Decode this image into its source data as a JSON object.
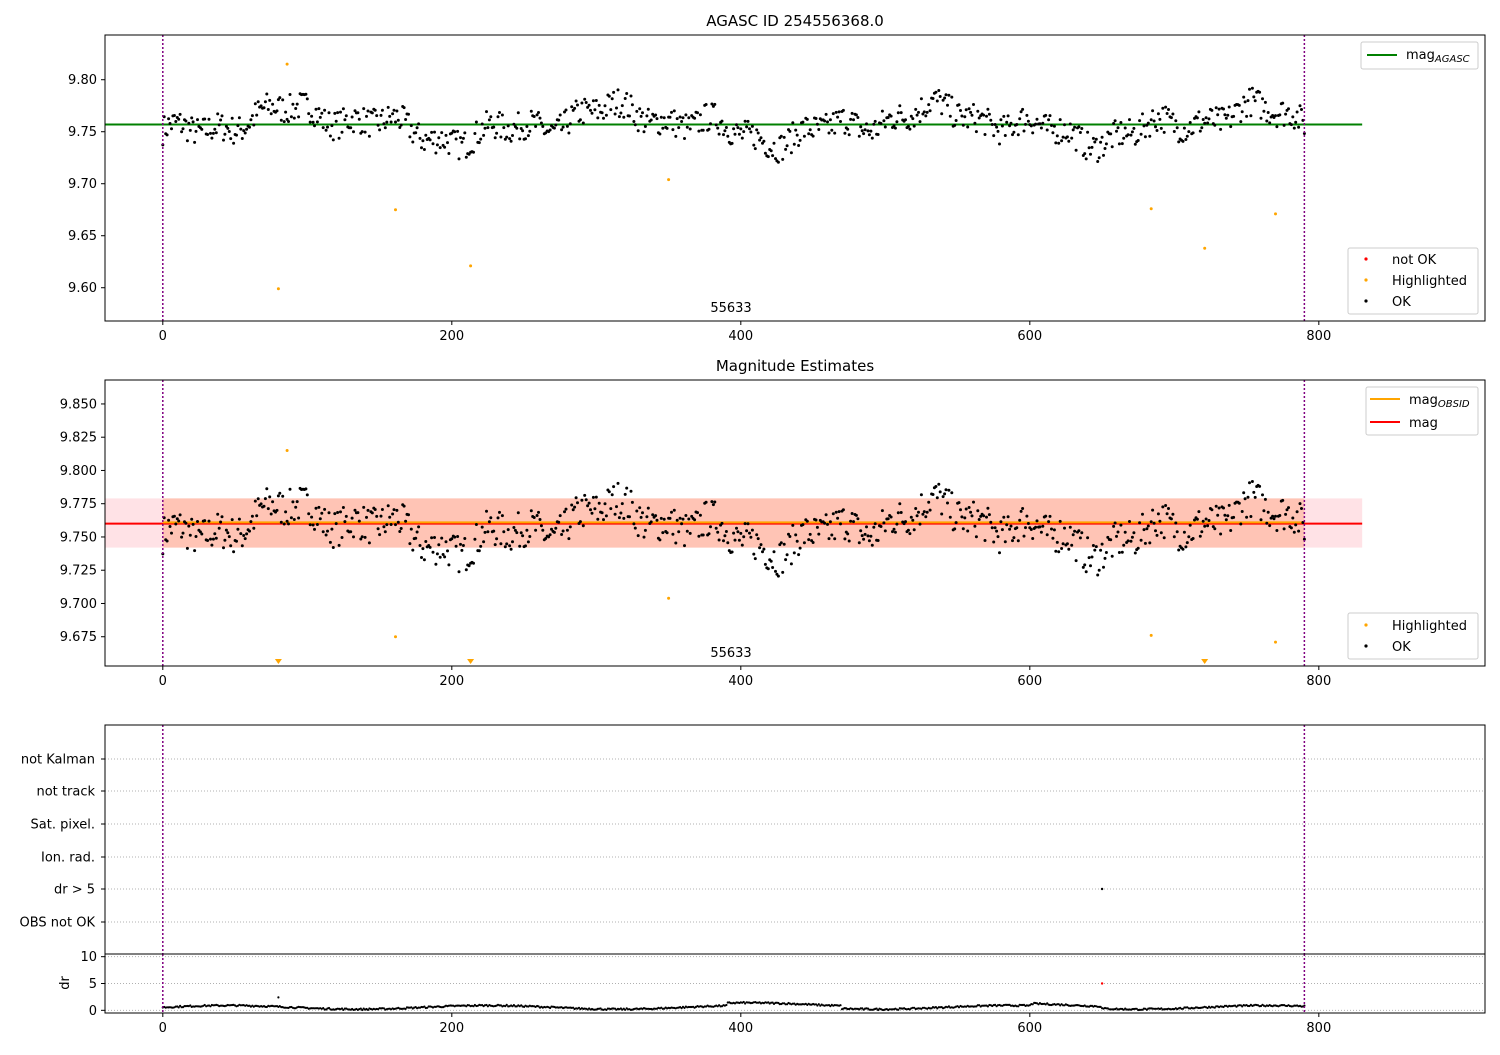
{
  "chart_data": [
    {
      "type": "scatter",
      "title": "AGASC ID 254556368.0",
      "xlim": [
        -40,
        915
      ],
      "ylim": [
        9.568,
        9.843
      ],
      "xticks": [
        0,
        200,
        400,
        600,
        800
      ],
      "xtick_labels": [
        "0",
        "200",
        "400",
        "600",
        "800"
      ],
      "yticks": [
        9.6,
        9.65,
        9.7,
        9.75,
        9.8
      ],
      "ytick_labels": [
        "9.60",
        "9.65",
        "9.70",
        "9.75",
        "9.80"
      ],
      "annotation": "55633",
      "vlines": [
        0,
        790
      ],
      "hlines": [
        {
          "name": "mag_AGASC",
          "y": 9.757,
          "color": "#008000",
          "x": [
            -40,
            830
          ]
        }
      ],
      "series": [
        {
          "name": "not OK",
          "color": "#ff0000",
          "points": []
        },
        {
          "name": "Highlighted",
          "color": "#ffa500",
          "points": [
            [
              80,
              9.599
            ],
            [
              86,
              9.815
            ],
            [
              161,
              9.675
            ],
            [
              213,
              9.621
            ],
            [
              350,
              9.704
            ],
            [
              684,
              9.676
            ],
            [
              721,
              9.638
            ],
            [
              770,
              9.671
            ]
          ]
        },
        {
          "name": "OK",
          "color": "#000000",
          "note": "about 790 points from x=0 to x=790, slow wander between 9.72 and 9.81; series is generated in script"
        }
      ],
      "legends": [
        {
          "position": "upper-right",
          "entries": [
            {
              "label": "mag",
              "sub": "AGASC",
              "kind": "line",
              "color": "#008000"
            }
          ]
        },
        {
          "position": "lower-right",
          "entries": [
            {
              "label": "not OK",
              "kind": "dot",
              "color": "#ff0000"
            },
            {
              "label": "Highlighted",
              "kind": "dot",
              "color": "#ffa500"
            },
            {
              "label": "OK",
              "kind": "dot",
              "color": "#000000"
            }
          ]
        }
      ]
    },
    {
      "type": "scatter",
      "title": "Magnitude Estimates",
      "xlim": [
        -40,
        915
      ],
      "ylim": [
        9.653,
        9.868
      ],
      "xticks": [
        0,
        200,
        400,
        600,
        800
      ],
      "xtick_labels": [
        "0",
        "200",
        "400",
        "600",
        "800"
      ],
      "yticks": [
        9.675,
        9.7,
        9.725,
        9.75,
        9.775,
        9.8,
        9.825,
        9.85
      ],
      "ytick_labels": [
        "9.675",
        "9.700",
        "9.725",
        "9.750",
        "9.775",
        "9.800",
        "9.825",
        "9.850"
      ],
      "annotation": "55633",
      "vlines": [
        0,
        790
      ],
      "bands": [
        {
          "name": "mag band",
          "x": [
            -40,
            830
          ],
          "y": [
            9.742,
            9.779
          ],
          "color": "#ffb6c1"
        },
        {
          "name": "mag_OBSID band",
          "x": [
            0,
            790
          ],
          "y": [
            9.742,
            9.779
          ],
          "color": "#ffa07a"
        }
      ],
      "hlines": [
        {
          "name": "mag",
          "y": 9.76,
          "color": "#ff0000",
          "x": [
            -40,
            830
          ]
        },
        {
          "name": "mag_OBSID",
          "y": 9.761,
          "color": "#ffa500",
          "x": [
            0,
            790
          ]
        }
      ],
      "offscale_markers": [
        80,
        213,
        721
      ],
      "series": [
        {
          "name": "Highlighted",
          "color": "#ffa500",
          "points": [
            [
              86,
              9.815
            ],
            [
              161,
              9.675
            ],
            [
              350,
              9.704
            ],
            [
              684,
              9.676
            ],
            [
              770,
              9.671
            ]
          ]
        },
        {
          "name": "OK",
          "color": "#000000",
          "note": "same observations as top panel; series is generated in script"
        }
      ],
      "legends": [
        {
          "position": "upper-right",
          "entries": [
            {
              "label": "mag",
              "sub": "OBSID",
              "kind": "line",
              "color": "#ffa500"
            },
            {
              "label": "mag",
              "kind": "line",
              "color": "#ff0000"
            }
          ]
        },
        {
          "position": "lower-right",
          "entries": [
            {
              "label": "Highlighted",
              "kind": "dot",
              "color": "#ffa500"
            },
            {
              "label": "OK",
              "kind": "dot",
              "color": "#000000"
            }
          ]
        }
      ]
    },
    {
      "type": "scatter",
      "title": "",
      "xlim": [
        -40,
        915
      ],
      "categories": [
        "not Kalman",
        "not track",
        "Sat. pixel.",
        "Ion. rad.",
        "dr > 5",
        "OBS not OK"
      ],
      "flag_points": [
        {
          "category": "dr > 5",
          "x": 650
        }
      ],
      "vlines": [
        0,
        790
      ]
    },
    {
      "type": "scatter",
      "title": "",
      "ylabel": "dr",
      "xlim": [
        -40,
        915
      ],
      "ylim": [
        -0.5,
        10.5
      ],
      "xticks": [
        0,
        200,
        400,
        600,
        800
      ],
      "xtick_labels": [
        "0",
        "200",
        "400",
        "600",
        "800"
      ],
      "yticks": [
        0,
        5,
        10
      ],
      "ytick_labels": [
        "0",
        "5",
        "10"
      ],
      "vlines": [
        0,
        790
      ],
      "series": [
        {
          "name": "not OK",
          "color": "#ff0000",
          "points": [
            [
              650,
              5.0
            ]
          ]
        },
        {
          "name": "OK",
          "color": "#000000",
          "note": "about 790 points near 0 to 1.3 with an outlier 2.4 at x=80; series is generated in script"
        }
      ]
    }
  ]
}
